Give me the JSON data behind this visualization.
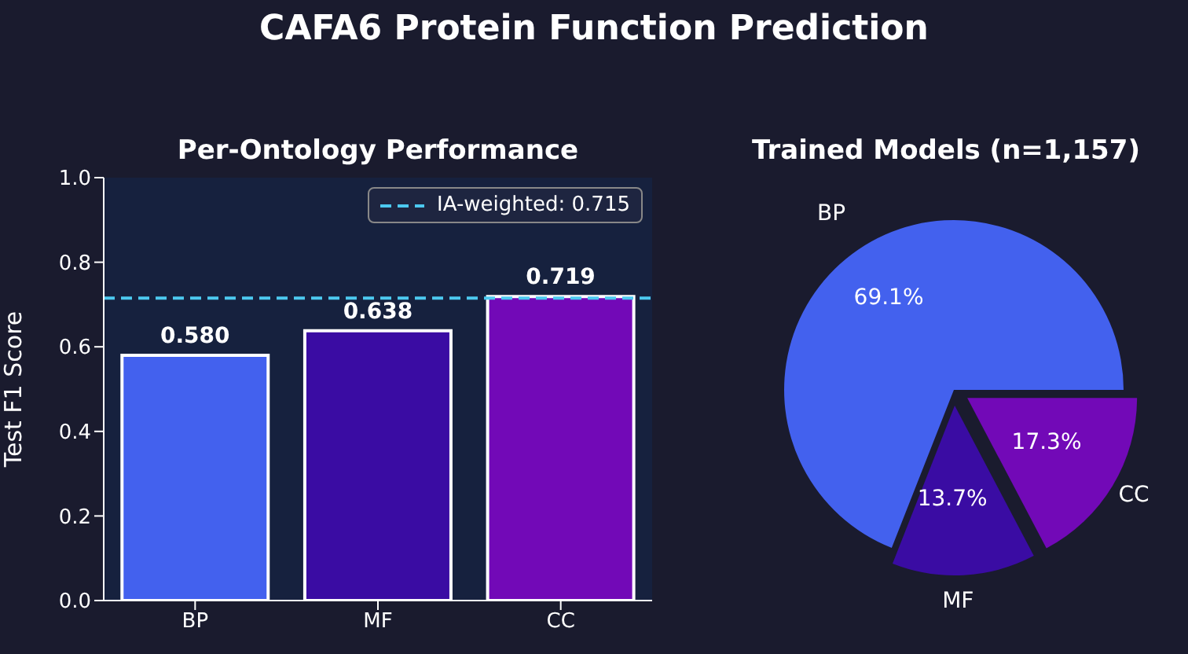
{
  "chart_data": [
    {
      "type": "bar",
      "title": "Per-Ontology Performance",
      "annotations": [
        "CAFA6 Protein Function Prediction"
      ],
      "ylabel": "Test F1 Score",
      "categories": [
        "BP",
        "MF",
        "CC"
      ],
      "values": [
        0.58,
        0.638,
        0.719
      ],
      "colors": [
        "#4361ee",
        "#3a0ca3",
        "#7209b7"
      ],
      "value_labels": [
        "0.580",
        "0.638",
        "0.719"
      ],
      "ylim": [
        0,
        1
      ],
      "yticks": [
        {
          "value": 0,
          "label": "0.0"
        },
        {
          "value": 0.2,
          "label": "0.2"
        },
        {
          "value": 0.4,
          "label": "0.4"
        },
        {
          "value": 0.6,
          "label": "0.6"
        },
        {
          "value": 0.8,
          "label": "0.8"
        },
        {
          "value": 1,
          "label": "1.0"
        }
      ],
      "ref_lines": [
        {
          "axis": "y",
          "value": 0.715,
          "label": "IA-weighted: 0.715",
          "color": "#4cc9f0",
          "line_style": "dashed"
        }
      ],
      "grid": false,
      "legend": "top right"
    },
    {
      "type": "pie",
      "title": "Trained Models (n=1,157)",
      "categories": [
        "BP",
        "MF",
        "CC"
      ],
      "values": [
        69.1,
        13.7,
        17.3
      ],
      "colors": [
        "#4361ee",
        "#3a0ca3",
        "#7209b7"
      ],
      "value_labels": [
        "69.1%",
        "13.7%",
        "17.3%"
      ]
    }
  ]
}
